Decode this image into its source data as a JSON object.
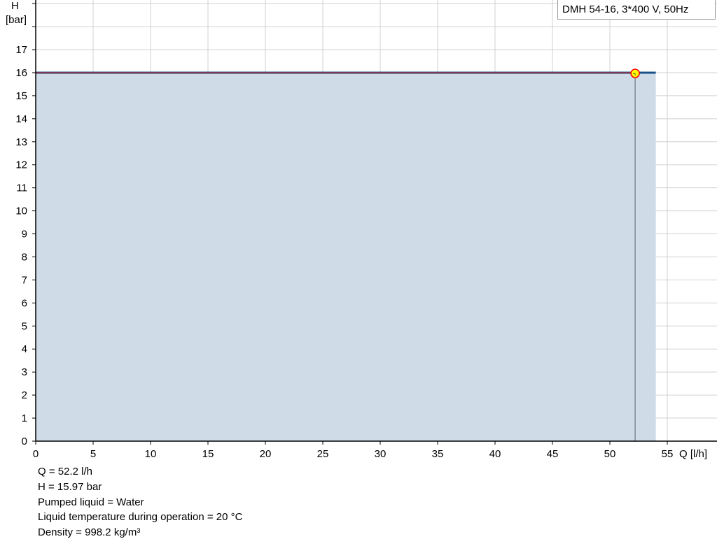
{
  "chart_data": {
    "type": "area",
    "title": "",
    "legend": {
      "label": "DMH 54-16, 3*400 V, 50Hz",
      "placement": "top-right"
    },
    "xlabel": "Q [l/h]",
    "ylabel_line1": "H",
    "ylabel_line2": "[bar]",
    "xlim": [
      0,
      60
    ],
    "ylim": [
      0,
      19
    ],
    "x_ticks": [
      0,
      5,
      10,
      15,
      20,
      25,
      30,
      35,
      40,
      45,
      50,
      55
    ],
    "y_ticks": [
      0,
      1,
      2,
      3,
      4,
      5,
      6,
      7,
      8,
      9,
      10,
      11,
      12,
      13,
      14,
      15,
      16,
      17
    ],
    "grid": true,
    "series": [
      {
        "x": [
          0,
          54
        ],
        "y": [
          16,
          16
        ],
        "color": "#1a5189",
        "fill": "#cfdbe6"
      }
    ],
    "operating_point": {
      "x": 52.2,
      "y": 15.97,
      "fill": "#ffff00",
      "stroke": "#ff0000"
    }
  },
  "info": [
    "Q = 52.2 l/h",
    "H = 15.97 bar",
    "Pumped liquid = Water",
    "Liquid temperature during operation = 20 °C",
    "Density = 998.2 kg/m³"
  ]
}
